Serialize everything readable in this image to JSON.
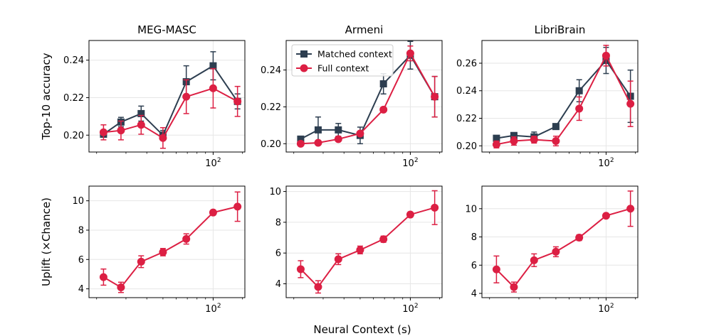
{
  "figure": {
    "xlabel": "Neural Context (s)",
    "colors": {
      "matched": "#2d3e50",
      "full": "#dc1f43",
      "grid": "#e6e6e6",
      "axis": "#000000"
    }
  },
  "chart_data": [
    {
      "type": "line",
      "row": 0,
      "col": 0,
      "title": "MEG-MASC",
      "ylabel": "Top-10 accuracy",
      "xscale": "log",
      "xlim": [
        18,
        155
      ],
      "ylim": [
        0.191,
        0.2505
      ],
      "yticks": [
        0.2,
        0.22,
        0.24
      ],
      "ytick_labels": [
        "0.20",
        "0.22",
        "0.24"
      ],
      "xtick_label": "10^2",
      "series": [
        {
          "key": "matched",
          "marker": "square",
          "x": [
            22,
            28,
            37,
            50,
            69,
            100,
            140
          ],
          "y": [
            0.2005,
            0.207,
            0.2115,
            0.2,
            0.2285,
            0.237,
            0.218
          ],
          "err": [
            0.0015,
            0.0025,
            0.004,
            0.0025,
            0.0085,
            0.0075,
            0.004
          ]
        },
        {
          "key": "full",
          "marker": "circle",
          "x": [
            22,
            28,
            37,
            50,
            69,
            100,
            140
          ],
          "y": [
            0.2015,
            0.2025,
            0.2055,
            0.1985,
            0.2205,
            0.225,
            0.218
          ],
          "err": [
            0.004,
            0.005,
            0.005,
            0.0055,
            0.009,
            0.0105,
            0.008
          ]
        }
      ]
    },
    {
      "type": "line",
      "row": 0,
      "col": 1,
      "title": "Armeni",
      "ylabel": "",
      "xscale": "log",
      "xlim": [
        18,
        155
      ],
      "ylim": [
        0.1955,
        0.256
      ],
      "yticks": [
        0.2,
        0.22,
        0.24
      ],
      "ytick_labels": [
        "0.20",
        "0.22",
        "0.24"
      ],
      "xtick_label": "10^2",
      "legend": {
        "placement": "upper-left",
        "entries": [
          {
            "key": "matched",
            "label": "Matched context"
          },
          {
            "key": "full",
            "label": "Full context"
          }
        ]
      },
      "series": [
        {
          "key": "matched",
          "marker": "square",
          "x": [
            22,
            28,
            37,
            50,
            69,
            100,
            140
          ],
          "y": [
            0.2025,
            0.2075,
            0.2075,
            0.2045,
            0.2325,
            0.248,
            0.2255
          ],
          "err": [
            0.001,
            0.007,
            0.0035,
            0.0045,
            0.0055,
            0.0075,
            0.011
          ]
        },
        {
          "key": "full",
          "marker": "circle",
          "x": [
            22,
            28,
            37,
            50,
            69,
            100,
            140
          ],
          "y": [
            0.2,
            0.2005,
            0.2025,
            0.2055,
            0.2185,
            0.249,
            0.2255
          ],
          "err": [
            0.001,
            0.001,
            0.001,
            0.001,
            0.001,
            0.004,
            0.011
          ]
        }
      ]
    },
    {
      "type": "line",
      "row": 0,
      "col": 2,
      "title": "LibriBrain",
      "ylabel": "",
      "xscale": "log",
      "xlim": [
        18,
        155
      ],
      "ylim": [
        0.1955,
        0.2765
      ],
      "yticks": [
        0.2,
        0.22,
        0.24,
        0.26
      ],
      "ytick_labels": [
        "0.20",
        "0.22",
        "0.24",
        "0.26"
      ],
      "xtick_label": "10^2",
      "series": [
        {
          "key": "matched",
          "marker": "square",
          "x": [
            22,
            28,
            37,
            50,
            69,
            100,
            140
          ],
          "y": [
            0.2055,
            0.2075,
            0.2065,
            0.214,
            0.24,
            0.262,
            0.236
          ],
          "err": [
            0.002,
            0.0015,
            0.0035,
            0.0015,
            0.008,
            0.0095,
            0.019
          ]
        },
        {
          "key": "full",
          "marker": "circle",
          "x": [
            22,
            28,
            37,
            50,
            69,
            100,
            140
          ],
          "y": [
            0.201,
            0.2035,
            0.2045,
            0.2035,
            0.227,
            0.2655,
            0.2305
          ],
          "err": [
            0.0025,
            0.003,
            0.0025,
            0.0035,
            0.0085,
            0.0075,
            0.0165
          ]
        }
      ]
    },
    {
      "type": "line",
      "row": 1,
      "col": 0,
      "title": "",
      "ylabel": "Uplift (×Chance)",
      "xscale": "log",
      "xlim": [
        18,
        155
      ],
      "ylim": [
        3.4,
        11.0
      ],
      "yticks": [
        4,
        6,
        8,
        10
      ],
      "ytick_labels": [
        "4",
        "6",
        "8",
        "10"
      ],
      "xtick_label": "10^2",
      "series": [
        {
          "key": "full",
          "marker": "circle",
          "x": [
            22,
            28,
            37,
            50,
            69,
            100,
            140
          ],
          "y": [
            4.8,
            4.1,
            5.85,
            6.5,
            7.4,
            9.2,
            9.6
          ],
          "err": [
            0.55,
            0.35,
            0.4,
            0.25,
            0.35,
            0.15,
            1.0
          ]
        }
      ]
    },
    {
      "type": "line",
      "row": 1,
      "col": 1,
      "title": "",
      "ylabel": "",
      "xscale": "log",
      "xlim": [
        18,
        155
      ],
      "ylim": [
        3.1,
        10.35
      ],
      "yticks": [
        4,
        6,
        8,
        10
      ],
      "ytick_labels": [
        "4",
        "6",
        "8",
        "10"
      ],
      "xtick_label": "10^2",
      "series": [
        {
          "key": "full",
          "marker": "circle",
          "x": [
            22,
            28,
            37,
            50,
            69,
            100,
            140
          ],
          "y": [
            4.95,
            3.8,
            5.6,
            6.2,
            6.9,
            8.5,
            8.95
          ],
          "err": [
            0.55,
            0.4,
            0.35,
            0.25,
            0.2,
            0.15,
            1.1
          ]
        }
      ]
    },
    {
      "type": "line",
      "row": 1,
      "col": 2,
      "title": "",
      "ylabel": "",
      "xscale": "log",
      "xlim": [
        18,
        155
      ],
      "ylim": [
        3.7,
        11.6
      ],
      "yticks": [
        4,
        6,
        8,
        10
      ],
      "ytick_labels": [
        "4",
        "6",
        "8",
        "10"
      ],
      "xtick_label": "10^2",
      "series": [
        {
          "key": "full",
          "marker": "circle",
          "x": [
            22,
            28,
            37,
            50,
            69,
            100,
            140
          ],
          "y": [
            5.7,
            4.45,
            6.35,
            6.95,
            7.95,
            9.5,
            10.0
          ],
          "err": [
            0.95,
            0.35,
            0.45,
            0.35,
            0.2,
            0.15,
            1.25
          ]
        }
      ]
    }
  ]
}
